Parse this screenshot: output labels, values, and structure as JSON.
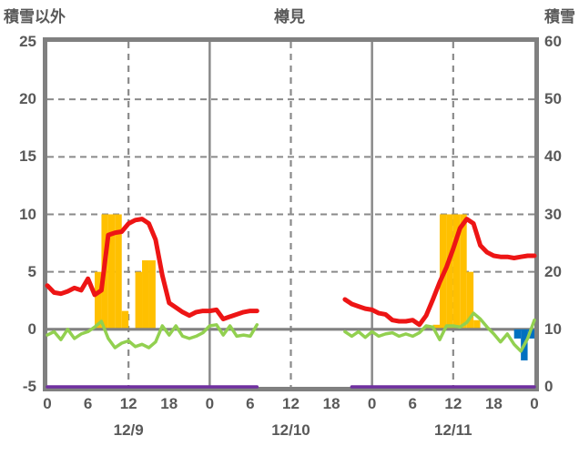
{
  "header": {
    "left_axis_title": "積雪以外",
    "chart_title": "樽見",
    "right_axis_title": "積雪"
  },
  "colors": {
    "axis_text": "#595959",
    "border": "#808080",
    "grid": "#8a8a8a",
    "zero_line": "#808080",
    "red_line": "#ed1515",
    "green_line": "#92d050",
    "orange_bars": "#ffc000",
    "blue_bars": "#0070c0",
    "purple_line": "#7030a0"
  },
  "chart_data": {
    "type": "line+bar",
    "title": "樽見",
    "left_axis": {
      "title": "積雪以外",
      "min": -5,
      "max": 25,
      "ticks": [
        25,
        20,
        15,
        10,
        5,
        0,
        -5
      ]
    },
    "right_axis": {
      "title": "積雪",
      "min": 0,
      "max": 60,
      "ticks": [
        60,
        50,
        40,
        30,
        20,
        10,
        0
      ]
    },
    "x_axis": {
      "total_hours": 72,
      "tick_hours": [
        0,
        6,
        12,
        18,
        24,
        30,
        36,
        42,
        48,
        54,
        60,
        66,
        72
      ],
      "tick_labels": [
        "0",
        "6",
        "12",
        "18",
        "0",
        "6",
        "12",
        "18",
        "0",
        "6",
        "12",
        "18",
        "0"
      ],
      "day_labels": [
        {
          "label": "12/9",
          "hour": 12
        },
        {
          "label": "12/10",
          "hour": 36
        },
        {
          "label": "12/11",
          "hour": 60
        }
      ],
      "grid_solid_hours": [
        24,
        48
      ],
      "grid_dashed_hours": [
        12,
        36,
        60
      ]
    },
    "grid_dashed_left_values": [
      20,
      15,
      10,
      5
    ],
    "series": [
      {
        "name": "orange-bars",
        "type": "bar",
        "axis": "left",
        "color": "#ffc000",
        "values": [
          0,
          0,
          0,
          0,
          0,
          0,
          0,
          5,
          10,
          10,
          10,
          1.6,
          0,
          5,
          6,
          6,
          0,
          0,
          0,
          0,
          0,
          0,
          0,
          0,
          0,
          0,
          0,
          0,
          0,
          0,
          0,
          0,
          0,
          0,
          0,
          0,
          0,
          0,
          0,
          0,
          0,
          0,
          0,
          0,
          0,
          0,
          0,
          0,
          0,
          0,
          0,
          0,
          0,
          0,
          0,
          0,
          0.3,
          0.4,
          10,
          10,
          10,
          10,
          5,
          0.8,
          0,
          0,
          0,
          0,
          0,
          0,
          0,
          0
        ]
      },
      {
        "name": "blue-bars",
        "type": "bar",
        "axis": "left",
        "color": "#0070c0",
        "values": [
          0,
          0,
          0,
          0,
          0,
          0,
          0,
          0,
          0,
          0,
          0,
          0,
          0,
          0,
          0,
          0,
          0,
          0,
          0,
          0,
          0,
          0,
          0,
          0,
          0,
          0,
          0,
          0,
          0,
          0,
          0,
          0,
          0,
          0,
          0,
          0,
          0,
          0,
          0,
          0,
          0,
          0,
          0,
          0,
          0,
          0,
          0,
          0,
          0,
          0,
          0,
          0,
          0,
          0,
          0,
          0,
          0,
          0,
          0,
          0,
          0,
          0,
          0,
          0,
          0,
          0,
          0,
          0,
          0,
          -0.8,
          -2.7,
          -0.8
        ]
      },
      {
        "name": "red-line",
        "type": "line",
        "axis": "left",
        "color": "#ed1515",
        "width": 5,
        "values": [
          3.8,
          3.2,
          3.1,
          3.3,
          3.6,
          3.4,
          4.4,
          3.0,
          3.4,
          8.2,
          8.4,
          8.5,
          9.2,
          9.5,
          9.6,
          9.2,
          7.8,
          4.7,
          2.3,
          1.9,
          1.5,
          1.2,
          1.5,
          1.6,
          1.6,
          1.7,
          0.9,
          1.1,
          1.3,
          1.5,
          1.6,
          1.6,
          null,
          null,
          null,
          null,
          null,
          null,
          null,
          null,
          null,
          null,
          null,
          null,
          2.6,
          2.2,
          2.0,
          1.8,
          1.7,
          1.4,
          1.3,
          0.8,
          0.7,
          0.7,
          0.8,
          0.4,
          1.2,
          2.6,
          4.1,
          5.4,
          7.0,
          8.8,
          9.6,
          9.2,
          7.3,
          6.7,
          6.4,
          6.3,
          6.3,
          6.2,
          6.3,
          6.4,
          6.4
        ]
      },
      {
        "name": "green-line",
        "type": "line",
        "axis": "left",
        "color": "#92d050",
        "width": 3.5,
        "values": [
          -0.5,
          -0.2,
          -0.9,
          0.0,
          -0.8,
          -0.4,
          -0.2,
          0.2,
          0.7,
          -0.8,
          -1.6,
          -1.2,
          -1.0,
          -1.5,
          -1.3,
          -1.6,
          -1.1,
          0.3,
          -0.5,
          0.3,
          -0.6,
          -0.8,
          -0.6,
          -0.3,
          0.3,
          0.4,
          -0.5,
          0.3,
          -0.6,
          -0.5,
          -0.6,
          0.4,
          null,
          null,
          null,
          null,
          null,
          null,
          null,
          null,
          null,
          null,
          null,
          null,
          -0.2,
          -0.6,
          -0.2,
          -0.7,
          -0.2,
          -0.6,
          -0.4,
          -0.3,
          -0.6,
          -0.4,
          -0.6,
          -0.3,
          0.3,
          0.2,
          -0.9,
          0.3,
          0.3,
          0.2,
          0.6,
          1.4,
          0.9,
          0.2,
          -0.4,
          -1.1,
          -0.4,
          -1.3,
          -1.9,
          -0.8,
          0.8
        ]
      },
      {
        "name": "purple-line",
        "type": "line",
        "axis": "right",
        "color": "#7030a0",
        "width": 3.5,
        "values": [
          0,
          0,
          0,
          0,
          0,
          0,
          0,
          0,
          0,
          0,
          0,
          0,
          0,
          0,
          0,
          0,
          0,
          0,
          0,
          0,
          0,
          0,
          0,
          0,
          0,
          0,
          0,
          0,
          0,
          0,
          0,
          0,
          null,
          null,
          null,
          null,
          null,
          null,
          null,
          null,
          null,
          null,
          null,
          null,
          null,
          0,
          0,
          0,
          0,
          0,
          0,
          0,
          0,
          0,
          0,
          0,
          0,
          0,
          0,
          0,
          0,
          0,
          0,
          0,
          0,
          0,
          0,
          0,
          0,
          0,
          0,
          0,
          0
        ]
      }
    ]
  }
}
